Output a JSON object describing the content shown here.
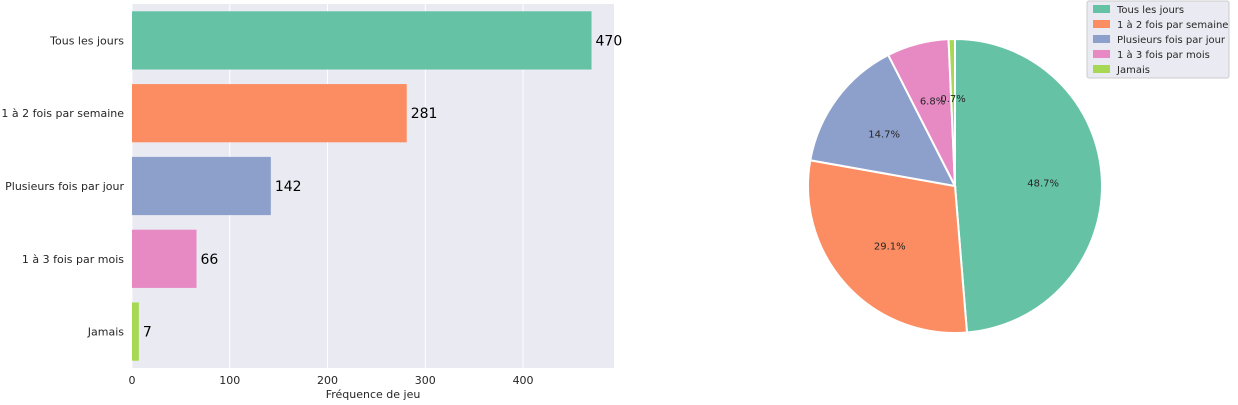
{
  "chart_data": [
    {
      "type": "bar",
      "orientation": "horizontal",
      "categories": [
        "Tous les jours",
        "1 à 2 fois par semaine",
        "Plusieurs fois par jour",
        "1 à 3 fois par mois",
        "Jamais"
      ],
      "values": [
        470,
        281,
        142,
        66,
        7
      ],
      "data_labels": [
        "470",
        "281",
        "142",
        "66",
        "7"
      ],
      "colors": [
        "#66c2a5",
        "#fc8d62",
        "#8da0cb",
        "#e78ac3",
        "#a6d854"
      ],
      "xlabel": "Fréquence de jeu",
      "ylabel": "",
      "xlim": [
        0,
        493
      ],
      "xticks": [
        0,
        100,
        200,
        300,
        400
      ],
      "xtick_labels": [
        "0",
        "100",
        "200",
        "300",
        "400"
      ],
      "grid": true,
      "background": "#eaeaf2"
    },
    {
      "type": "pie",
      "labels": [
        "Tous les jours",
        "1 à 2 fois par semaine",
        "Plusieurs fois par jour",
        "1 à 3 fois par mois",
        "Jamais"
      ],
      "values": [
        48.7,
        29.1,
        14.7,
        6.8,
        0.7
      ],
      "pct_labels": [
        "48.7%",
        "29.1%",
        "14.7%",
        "6.8%",
        "0.7%"
      ],
      "colors": [
        "#66c2a5",
        "#fc8d62",
        "#8da0cb",
        "#e78ac3",
        "#a6d854"
      ],
      "legend_position": "upper-right"
    }
  ]
}
